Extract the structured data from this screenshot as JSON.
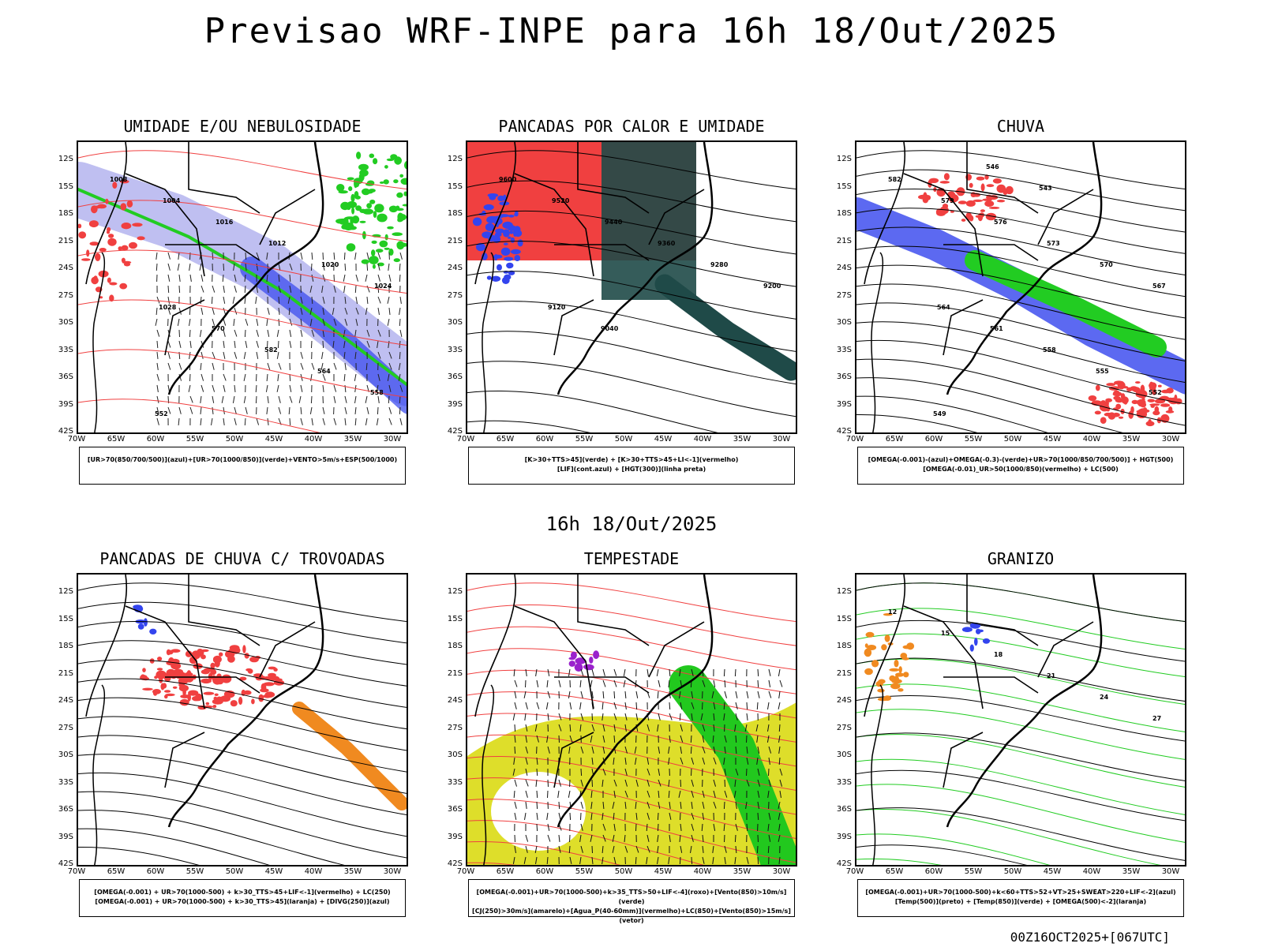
{
  "header": {
    "title": "Previsao WRF-INPE  para 16h 18/Out/2025"
  },
  "subtitle": "16h 18/Out/2025",
  "footer": "00Z16OCT2025+[067UTC]",
  "axes": {
    "lat_ticks": [
      "12S",
      "15S",
      "18S",
      "21S",
      "24S",
      "27S",
      "30S",
      "33S",
      "36S",
      "39S",
      "42S"
    ],
    "lon_ticks": [
      "70W",
      "65W",
      "60W",
      "55W",
      "50W",
      "45W",
      "40W",
      "35W",
      "30W"
    ]
  },
  "panels": [
    {
      "title": "UMIDADE E/OU NEBULOSIDADE",
      "legend": [
        "[UR>70(850/700/500)](azul)+[UR>70(1000/850)](verde)+VENTO>5m/s+ESP(500/1000)"
      ],
      "isolines": [
        "1008",
        "1004",
        "1016",
        "1012",
        "1020",
        "1024",
        "1028",
        "570",
        "582",
        "564",
        "558",
        "552"
      ]
    },
    {
      "title": "PANCADAS POR CALOR E UMIDADE",
      "legend": [
        "[K>30+TTS>45](verde) + [K>30+TTS>45+LI<-1](vermelho)",
        "[LIF](cont.azul) + [HGT(300)](linha preta)"
      ],
      "isolines": [
        "9600",
        "9520",
        "9440",
        "9360",
        "9280",
        "9200",
        "9120",
        "9040"
      ]
    },
    {
      "title": "CHUVA",
      "legend": [
        "[OMEGA(-0.001)-(azul)+OMEGA(-0.3)-(verde)+UR>70(1000/850/700/500)] + HGT(500)",
        "[OMEGA(-0.01)_UR>50(1000/850)(vermelho) + LC(500)"
      ],
      "isolines": [
        "582",
        "579",
        "576",
        "573",
        "570",
        "567",
        "564",
        "561",
        "558",
        "555",
        "552",
        "549",
        "546",
        "543"
      ]
    },
    {
      "title": "PANCADAS DE CHUVA C/ TROVOADAS",
      "legend": [
        "[OMEGA(-0.001) + UR>70(1000-500) + k>30_TTS>45+LIF<-1](vermelho) + LC(250)",
        "[OMEGA(-0.001) + UR>70(1000-500) + k>30_TTS>45](laranja) + [DIVG(250)](azul)"
      ],
      "isolines": []
    },
    {
      "title": "TEMPESTADE",
      "legend": [
        "[OMEGA(-0.001)+UR>70(1000-500)+k>35_TTS>50+LIF<-4](roxo)+[Vento(850)>10m/s](verde)",
        "[CJ(250)>30m/s](amarelo)+[Agua_P(40-60mm)](vermelho)+LC(850)+[Vento(850)>15m/s](vetor)"
      ],
      "isolines": []
    },
    {
      "title": "GRANIZO",
      "legend": [
        "[OMEGA(-0.001)+UR>70(1000-500)+k<60+TTS>52+VT>25+SWEAT>220+LIF<-2](azul)",
        "[Temp(500)](preto) + [Temp(850)](verde) + [OMEGA(500)<-2](laranja)"
      ],
      "isolines": [
        "12",
        "15",
        "18",
        "21",
        "24",
        "27"
      ]
    }
  ],
  "colors": {
    "red": "#f04040",
    "green": "#22cc22",
    "blue": "#3344ee",
    "lightblue": "#b8b8f0",
    "darkteal": "#1f4a48",
    "orange": "#f08a20",
    "yellow": "#dede2a",
    "limegreen": "#22c81e",
    "purple": "#9a22cc"
  }
}
